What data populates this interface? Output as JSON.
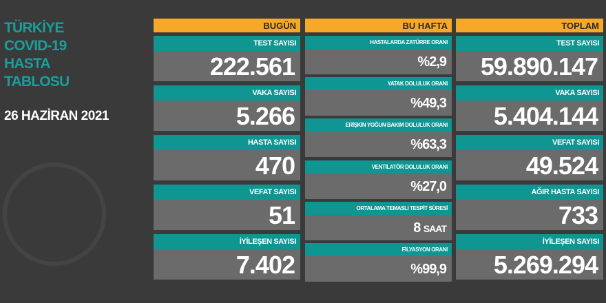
{
  "title": [
    "TÜRKİYE",
    "COVID-19",
    "HASTA",
    "TABLOSU"
  ],
  "date": "26 HAZİRAN 2021",
  "colors": {
    "background": "#3a3a3a",
    "header": "#f6a829",
    "label": "#0f9693",
    "value_box": "#6b6b6b",
    "title": "#1a9e9a"
  },
  "today": {
    "header": "BUGÜN",
    "items": [
      {
        "label": "TEST SAYISI",
        "value": "222.561"
      },
      {
        "label": "VAKA SAYISI",
        "value": "5.266"
      },
      {
        "label": "HASTA SAYISI",
        "value": "470"
      },
      {
        "label": "VEFAT SAYISI",
        "value": "51"
      },
      {
        "label": "İYİLEŞEN SAYISI",
        "value": "7.402"
      }
    ]
  },
  "week": {
    "header": "BU HAFTA",
    "items": [
      {
        "label": "HASTALARDA ZATÜRRE ORANI",
        "value": "%2,9"
      },
      {
        "label": "YATAK DOLULUK ORANI",
        "value": "%49,3"
      },
      {
        "label": "ERİŞKİN YOĞUN BAKIM DOLULUK ORANI",
        "value": "%63,3"
      },
      {
        "label": "VENTİLATÖR DOLULUK ORANI",
        "value": "%27,0"
      },
      {
        "label": "ORTALAMA TEMASLI TESPİT SÜRESİ",
        "value": "8",
        "unit": "SAAT"
      },
      {
        "label": "FİLYASYON ORANI",
        "value": "%99,9"
      }
    ]
  },
  "total": {
    "header": "TOPLAM",
    "items": [
      {
        "label": "TEST SAYISI",
        "value": "59.890.147"
      },
      {
        "label": "VAKA SAYISI",
        "value": "5.404.144"
      },
      {
        "label": "VEFAT SAYISI",
        "value": "49.524"
      },
      {
        "label": "AĞIR HASTA SAYISI",
        "value": "733"
      },
      {
        "label": "İYİLEŞEN SAYISI",
        "value": "5.269.294"
      }
    ]
  }
}
